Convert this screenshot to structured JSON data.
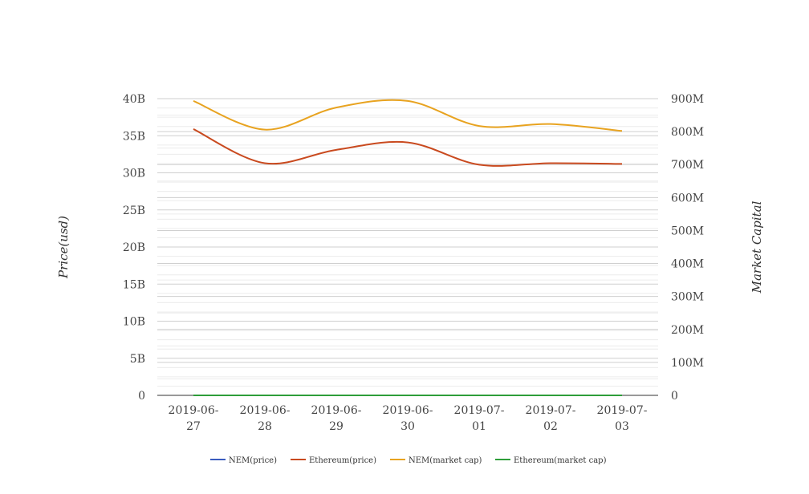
{
  "chart_data": {
    "type": "line",
    "title": "",
    "x": [
      "2019-06-27",
      "2019-06-28",
      "2019-06-29",
      "2019-06-30",
      "2019-07-01",
      "2019-07-02",
      "2019-07-03"
    ],
    "x_tick_lines": [
      [
        "2019-06-",
        "27"
      ],
      [
        "2019-06-",
        "28"
      ],
      [
        "2019-06-",
        "29"
      ],
      [
        "2019-06-",
        "30"
      ],
      [
        "2019-07-",
        "01"
      ],
      [
        "2019-07-",
        "02"
      ],
      [
        "2019-07-",
        "03"
      ]
    ],
    "ylabel": "Price(usd)",
    "ylabel_right": "Market Capital",
    "ylim": [
      0,
      40000000000
    ],
    "ylim_right": [
      0,
      900000000
    ],
    "y_ticks": [
      "0",
      "5B",
      "10B",
      "15B",
      "20B",
      "25B",
      "30B",
      "35B",
      "40B"
    ],
    "y_ticks_right": [
      "0",
      "100M",
      "200M",
      "300M",
      "400M",
      "500M",
      "600M",
      "700M",
      "800M",
      "900M"
    ],
    "grid": true,
    "legend_position": "bottom",
    "series": [
      {
        "name": "NEM(price)",
        "axis": "left",
        "color": "#3a5bbf",
        "values": [
          0.1,
          0.1,
          0.1,
          0.1,
          0.1,
          0.1,
          0.1
        ]
      },
      {
        "name": "Ethereum(price)",
        "axis": "left",
        "color": "#c94a1f",
        "values": [
          35900000000,
          31300000000,
          33100000000,
          34100000000,
          31100000000,
          31300000000,
          31200000000
        ]
      },
      {
        "name": "NEM(market cap)",
        "axis": "right",
        "color": "#e8a320",
        "values": [
          893000000,
          806000000,
          873000000,
          893000000,
          817000000,
          823000000,
          802000000
        ]
      },
      {
        "name": "Ethereum(market cap)",
        "axis": "right",
        "color": "#2e9e3a",
        "values": [
          0,
          0,
          0,
          0,
          0,
          0,
          0
        ]
      }
    ]
  }
}
